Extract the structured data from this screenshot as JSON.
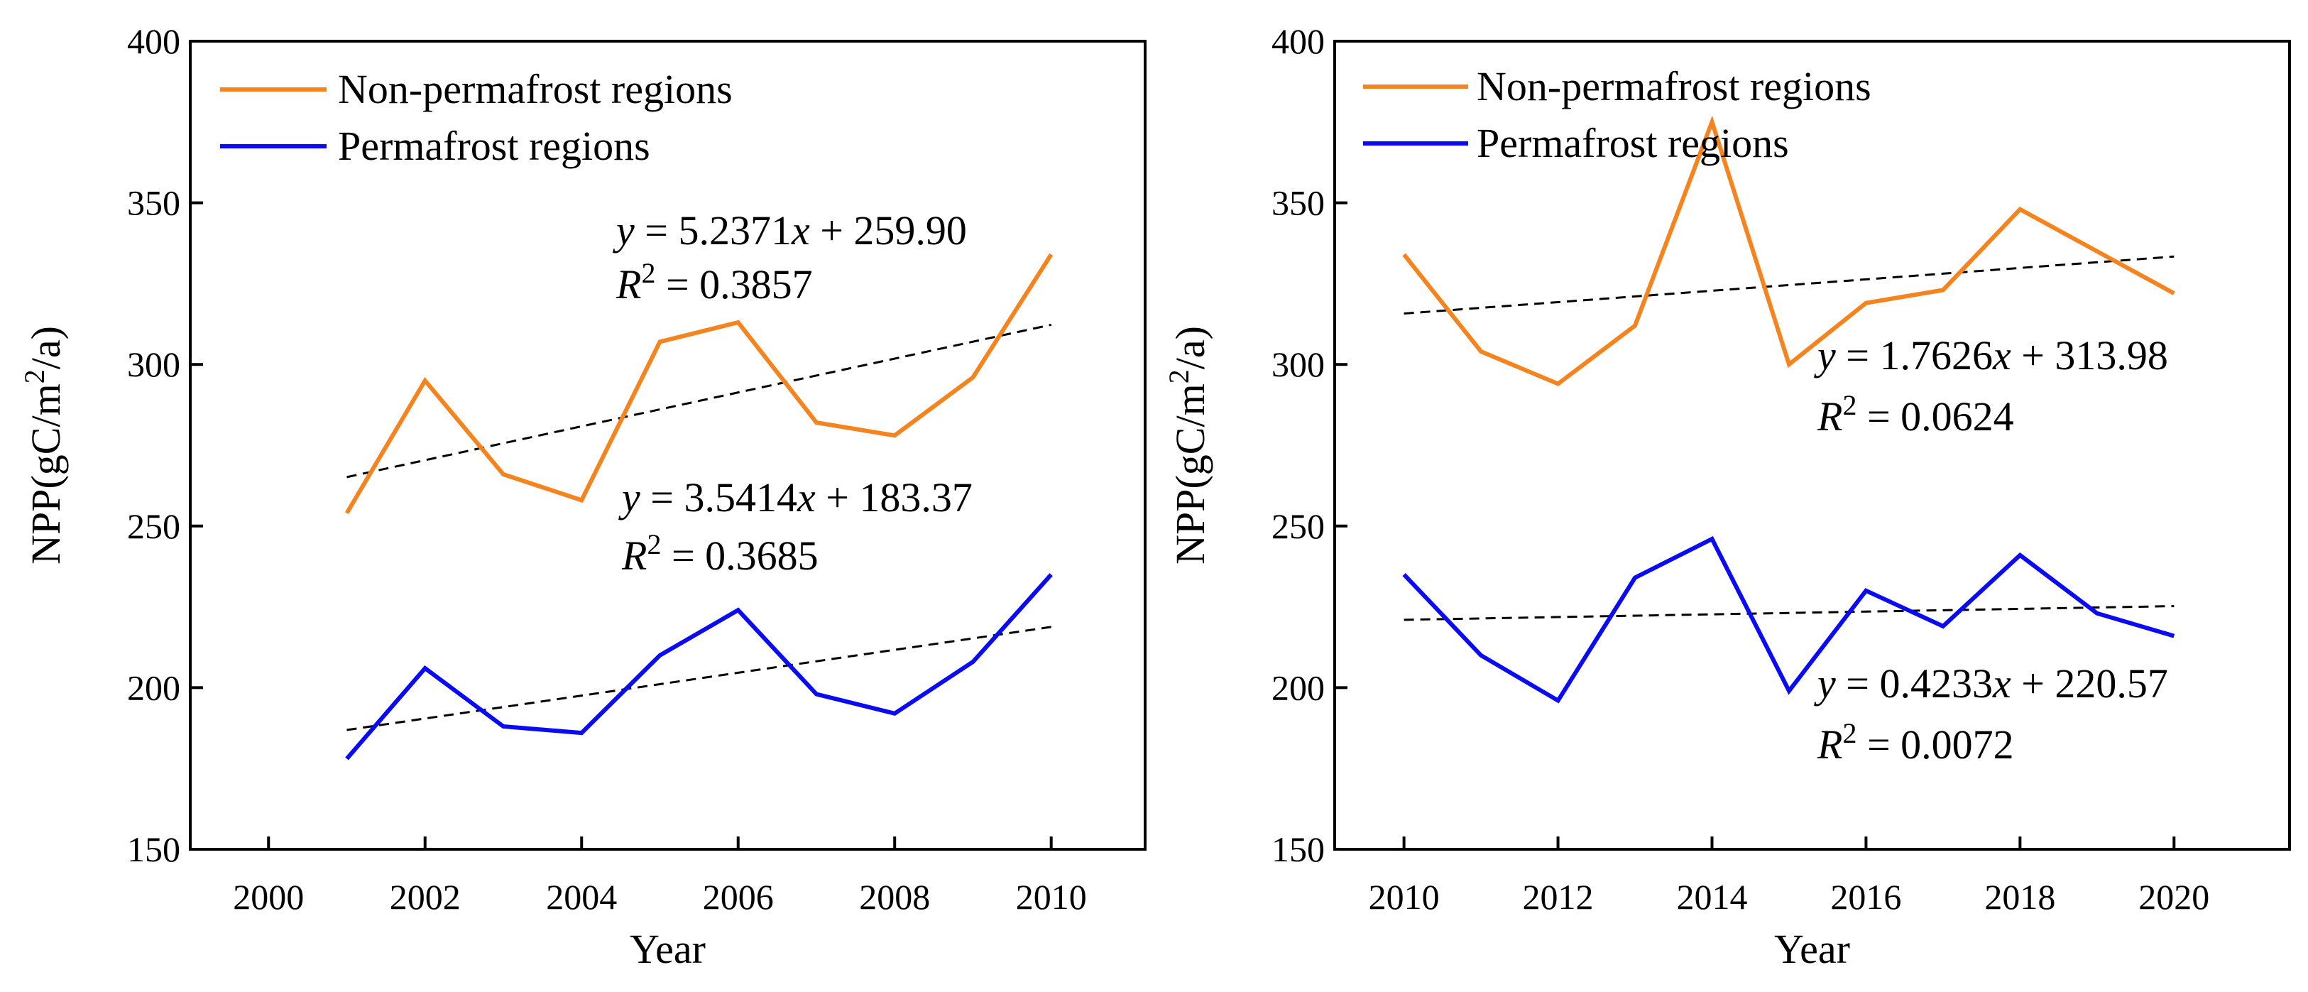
{
  "chart_data": [
    {
      "type": "line",
      "xlabel": "Year",
      "ylabel": "NPP(gC/m²/a)",
      "ylabel_parts": {
        "before": "NPP(gC/m",
        "sup": "2",
        "after": "/a)"
      },
      "xlim": [
        1999,
        2011.2
      ],
      "ylim": [
        150,
        400
      ],
      "xticks": [
        2000,
        2002,
        2004,
        2006,
        2008,
        2010
      ],
      "yticks": [
        150,
        200,
        250,
        300,
        350,
        400
      ],
      "x": [
        2001,
        2002,
        2003,
        2004,
        2005,
        2006,
        2007,
        2008,
        2009,
        2010
      ],
      "legend_position": "top-left",
      "series": [
        {
          "name": "Non-permafrost regions",
          "color": "#F5841F",
          "values": [
            254,
            295,
            266,
            258,
            307,
            313,
            282,
            278,
            296,
            334
          ]
        },
        {
          "name": "Permafrost regions",
          "color": "#0A0AF5",
          "values": [
            178,
            206,
            188,
            186,
            210,
            224,
            198,
            192,
            208,
            235
          ]
        }
      ],
      "trendlines": [
        {
          "slope": 5.2371,
          "intercept": 259.9,
          "x_index_start": 1,
          "x_index_end": 10,
          "equation": {
            "y": "y",
            "eq": " = 5.2371",
            "x": "x",
            "rest": " + 259.90"
          },
          "r2": {
            "R": "R",
            "sup": "2",
            "rest": " = 0.3857"
          }
        },
        {
          "slope": 3.5414,
          "intercept": 183.37,
          "x_index_start": 1,
          "x_index_end": 10,
          "equation": {
            "y": "y",
            "eq": " = 3.5414",
            "x": "x",
            "rest": " + 183.37"
          },
          "r2": {
            "R": "R",
            "sup": "2",
            "rest": " = 0.3685"
          }
        }
      ]
    },
    {
      "type": "line",
      "xlabel": "Year",
      "ylabel": "NPP(gC/m²/a)",
      "ylabel_parts": {
        "before": "NPP(gC/m",
        "sup": "2",
        "after": "/a)"
      },
      "xlim": [
        2009.1,
        2021.5
      ],
      "ylim": [
        150,
        400
      ],
      "xticks": [
        2010,
        2012,
        2014,
        2016,
        2018,
        2020
      ],
      "yticks": [
        150,
        200,
        250,
        300,
        350,
        400
      ],
      "x": [
        2010,
        2011,
        2012,
        2013,
        2014,
        2015,
        2016,
        2017,
        2018,
        2019,
        2020
      ],
      "legend_position": "top-left",
      "series": [
        {
          "name": "Non-permafrost regions",
          "color": "#F5841F",
          "values": [
            334,
            304,
            294,
            312,
            375,
            300,
            319,
            323,
            348,
            335,
            322
          ]
        },
        {
          "name": "Permafrost regions",
          "color": "#0A0AF5",
          "values": [
            235,
            210,
            196,
            234,
            246,
            199,
            230,
            219,
            241,
            223,
            216
          ]
        }
      ],
      "trendlines": [
        {
          "slope": 1.7626,
          "intercept": 313.98,
          "x_index_start": 1,
          "x_index_end": 11,
          "equation": {
            "y": "y",
            "eq": " = 1.7626",
            "x": "x",
            "rest": " + 313.98"
          },
          "r2": {
            "R": "R",
            "sup": "2",
            "rest": " = 0.0624"
          }
        },
        {
          "slope": 0.4233,
          "intercept": 220.57,
          "x_index_start": 1,
          "x_index_end": 11,
          "equation": {
            "y": "y",
            "eq": " = 0.4233",
            "x": "x",
            "rest": " + 220.57"
          },
          "r2": {
            "R": "R",
            "sup": "2",
            "rest": " = 0.0072"
          }
        }
      ]
    }
  ]
}
